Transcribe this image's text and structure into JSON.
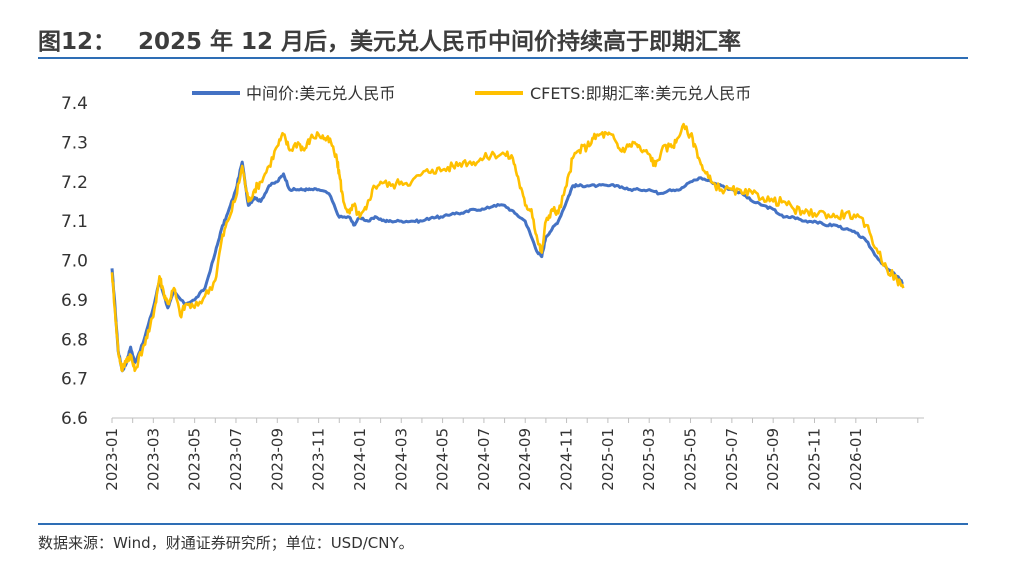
{
  "figure": {
    "number": "图12：",
    "title": "2025 年 12 月后，美元兑人民币中间价持续高于即期汇率",
    "source": "数据来源：Wind，财通证券研究所；单位：USD/CNY。"
  },
  "colors": {
    "series1": "#4472c4",
    "series2": "#ffc000",
    "rule": "#2e6eb5"
  },
  "chart_data": {
    "type": "line",
    "title": "2025 年 12 月后，美元兑人民币中间价持续高于即期汇率",
    "xlabel": "",
    "ylabel": "",
    "unit": "USD/CNY",
    "ylim": [
      6.6,
      7.4
    ],
    "yticks": [
      "6.6",
      "6.7",
      "6.8",
      "6.9",
      "7.0",
      "7.1",
      "7.2",
      "7.3",
      "7.4"
    ],
    "xlim": [
      "2023-01",
      "2026-03"
    ],
    "xticks": [
      "2023-01",
      "2023-03",
      "2023-05",
      "2023-07",
      "2023-09",
      "2023-11",
      "2024-01",
      "2024-03",
      "2024-05",
      "2024-07",
      "2024-09",
      "2024-11",
      "2025-01",
      "2025-03",
      "2025-05",
      "2025-07",
      "2025-09",
      "2025-11",
      "2026-01"
    ],
    "legend_position": "top",
    "series": [
      {
        "name": "中间价:美元兑人民币",
        "x": [
          0,
          0.15,
          0.3,
          0.5,
          0.7,
          0.9,
          1.1,
          1.5,
          2.0,
          2.3,
          2.7,
          3.0,
          3.5,
          4.0,
          4.5,
          5.0,
          5.3,
          5.6,
          6.0,
          6.3,
          6.6,
          6.9,
          7.2,
          7.6,
          8.0,
          8.3,
          8.6,
          9.0,
          9.3,
          9.6,
          10.0,
          10.5,
          11.0,
          11.5,
          11.7,
          12.0,
          12.4,
          12.8,
          13.2,
          13.5,
          14.0,
          14.5,
          15.0,
          15.5,
          16.0,
          16.5,
          17.0,
          17.5,
          18.0,
          18.5,
          19.0,
          19.5,
          20.0,
          20.3,
          20.6,
          20.8,
          21.0,
          21.3,
          21.6,
          22.0,
          22.3,
          22.6,
          23.0,
          23.5,
          24.0,
          24.5,
          25.0,
          25.5,
          26.0,
          26.5,
          27.0,
          27.5,
          28.0,
          28.5,
          29.0,
          29.5,
          30.0,
          30.5,
          31.0,
          31.5,
          32.0,
          32.5,
          33.0,
          33.5,
          34.0,
          34.5,
          35.0,
          35.5,
          36.0,
          36.5,
          37.0,
          37.5,
          38.0,
          38.3
        ],
        "values": [
          6.98,
          6.88,
          6.77,
          6.72,
          6.74,
          6.78,
          6.74,
          6.79,
          6.88,
          6.95,
          6.88,
          6.92,
          6.89,
          6.9,
          6.93,
          7.02,
          7.08,
          7.12,
          7.18,
          7.25,
          7.14,
          7.16,
          7.15,
          7.19,
          7.2,
          7.22,
          7.18,
          7.18,
          7.18,
          7.18,
          7.18,
          7.17,
          7.11,
          7.11,
          7.09,
          7.11,
          7.1,
          7.11,
          7.1,
          7.1,
          7.1,
          7.1,
          7.1,
          7.11,
          7.11,
          7.12,
          7.12,
          7.13,
          7.13,
          7.14,
          7.14,
          7.12,
          7.1,
          7.06,
          7.02,
          7.01,
          7.06,
          7.08,
          7.1,
          7.15,
          7.19,
          7.19,
          7.19,
          7.19,
          7.19,
          7.19,
          7.18,
          7.18,
          7.18,
          7.17,
          7.18,
          7.18,
          7.2,
          7.21,
          7.2,
          7.19,
          7.18,
          7.17,
          7.15,
          7.14,
          7.13,
          7.11,
          7.11,
          7.1,
          7.1,
          7.09,
          7.09,
          7.08,
          7.07,
          7.05,
          7.01,
          6.98,
          6.96,
          6.94
        ]
      },
      {
        "name": "CFETS:即期汇率:美元兑人民币",
        "x": [
          0,
          0.15,
          0.3,
          0.5,
          0.7,
          0.9,
          1.1,
          1.5,
          1.8,
          2.1,
          2.3,
          2.5,
          2.7,
          3.0,
          3.3,
          3.6,
          4.0,
          4.5,
          5.0,
          5.3,
          5.6,
          6.0,
          6.3,
          6.6,
          6.9,
          7.2,
          7.6,
          8.0,
          8.3,
          8.6,
          9.0,
          9.3,
          9.6,
          10.0,
          10.3,
          10.6,
          10.9,
          11.0,
          11.2,
          11.5,
          11.7,
          12.0,
          12.3,
          12.6,
          13.0,
          13.5,
          14.0,
          14.5,
          15.0,
          15.5,
          16.0,
          16.5,
          17.0,
          17.5,
          18.0,
          18.5,
          19.0,
          19.4,
          19.7,
          20.0,
          20.3,
          20.6,
          20.8,
          21.0,
          21.3,
          21.6,
          22.0,
          22.3,
          22.6,
          23.0,
          23.3,
          23.6,
          24.0,
          24.3,
          24.6,
          25.0,
          25.3,
          25.6,
          26.0,
          26.3,
          26.6,
          27.0,
          27.3,
          27.6,
          28.0,
          28.3,
          28.6,
          29.0,
          29.5,
          30.0,
          30.5,
          31.0,
          31.5,
          32.0,
          32.5,
          33.0,
          33.5,
          34.0,
          34.5,
          35.0,
          35.5,
          36.0,
          36.5,
          37.0,
          37.5,
          38.0,
          38.3
        ],
        "values": [
          6.97,
          6.87,
          6.77,
          6.72,
          6.75,
          6.76,
          6.72,
          6.78,
          6.82,
          6.89,
          6.96,
          6.92,
          6.89,
          6.93,
          6.86,
          6.89,
          6.88,
          6.91,
          6.95,
          7.05,
          7.1,
          7.16,
          7.24,
          7.15,
          7.18,
          7.2,
          7.24,
          7.29,
          7.32,
          7.28,
          7.3,
          7.28,
          7.31,
          7.32,
          7.31,
          7.3,
          7.25,
          7.22,
          7.15,
          7.12,
          7.14,
          7.11,
          7.13,
          7.18,
          7.2,
          7.19,
          7.2,
          7.2,
          7.22,
          7.23,
          7.23,
          7.24,
          7.25,
          7.25,
          7.26,
          7.27,
          7.27,
          7.26,
          7.2,
          7.14,
          7.13,
          7.05,
          7.02,
          7.1,
          7.13,
          7.12,
          7.19,
          7.26,
          7.28,
          7.29,
          7.31,
          7.32,
          7.32,
          7.31,
          7.28,
          7.29,
          7.3,
          7.28,
          7.27,
          7.24,
          7.28,
          7.29,
          7.3,
          7.34,
          7.32,
          7.28,
          7.23,
          7.2,
          7.18,
          7.18,
          7.17,
          7.17,
          7.16,
          7.15,
          7.15,
          7.13,
          7.12,
          7.12,
          7.12,
          7.11,
          7.12,
          7.11,
          7.09,
          7.03,
          6.98,
          6.95,
          6.93
        ]
      }
    ]
  }
}
